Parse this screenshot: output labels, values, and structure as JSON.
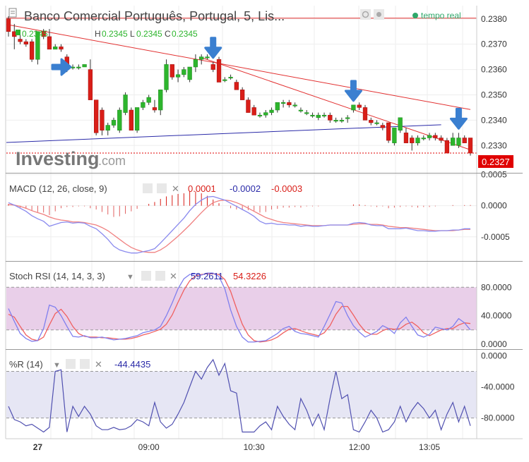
{
  "header": {
    "title": "Banco Comercial Português, Portugal, 5, Lis...",
    "realtime_label": "tempo real",
    "ohlc": [
      {
        "key": "O",
        "value": "0.2345"
      },
      {
        "key": "H",
        "value": "0.2345"
      },
      {
        "key": "L",
        "value": "0.2345"
      },
      {
        "key": "C",
        "value": "0.2345"
      }
    ],
    "logo_text": "Investing",
    "logo_suffix": ".com"
  },
  "colors": {
    "up": "#2db52d",
    "down": "#d91e18",
    "trendline_red": "#e23030",
    "trendline_blue": "#2a2aa8",
    "macd_line": "#8a8aee",
    "signal_line": "#f08080",
    "stoch_k": "#7f7fee",
    "stoch_d": "#f06060",
    "stoch_band": "#e9cfe9",
    "wr_line": "#5050b0",
    "wr_band": "#e6e6f4",
    "arrow": "#3a7fd0",
    "price_badge": "#e00000"
  },
  "chart_data": [
    {
      "id": "price",
      "type": "candlestick",
      "ylim": [
        0.2322,
        0.2383
      ],
      "y_ticks": [
        "0.2380",
        "0.2370",
        "0.2360",
        "0.2350",
        "0.2340",
        "0.2330"
      ],
      "last_price": "0.2327",
      "candles": [
        [
          0.238,
          0.2381,
          0.2373,
          0.2375
        ],
        [
          0.2375,
          0.2378,
          0.2368,
          0.2373
        ],
        [
          0.2372,
          0.2374,
          0.237,
          0.2371
        ],
        [
          0.2371,
          0.2372,
          0.2369,
          0.237
        ],
        [
          0.2371,
          0.2372,
          0.2363,
          0.2364
        ],
        [
          0.2364,
          0.2375,
          0.2362,
          0.2375
        ],
        [
          0.2375,
          0.2376,
          0.2372,
          0.2373
        ],
        [
          0.2373,
          0.2376,
          0.2368,
          0.2368
        ],
        [
          0.2368,
          0.237,
          0.2368,
          0.2369
        ],
        [
          0.2369,
          0.237,
          0.2367,
          0.2368
        ],
        [
          0.2365,
          0.2366,
          0.2359,
          0.236
        ],
        [
          0.2361,
          0.2362,
          0.236,
          0.2361
        ],
        [
          0.2361,
          0.2362,
          0.236,
          0.2361
        ],
        [
          0.2361,
          0.2362,
          0.2361,
          0.2362
        ],
        [
          0.236,
          0.2364,
          0.2348,
          0.2348
        ],
        [
          0.2348,
          0.2348,
          0.2334,
          0.2335
        ],
        [
          0.2344,
          0.2345,
          0.2334,
          0.2336
        ],
        [
          0.2336,
          0.2339,
          0.2334,
          0.2338
        ],
        [
          0.2338,
          0.2341,
          0.2337,
          0.234
        ],
        [
          0.2336,
          0.2345,
          0.2335,
          0.2344
        ],
        [
          0.2343,
          0.2351,
          0.2342,
          0.235
        ],
        [
          0.2344,
          0.2345,
          0.2336,
          0.2336
        ],
        [
          0.2336,
          0.2345,
          0.2335,
          0.2345
        ],
        [
          0.2345,
          0.2348,
          0.2344,
          0.2347
        ],
        [
          0.2347,
          0.235,
          0.2346,
          0.2349
        ],
        [
          0.2345,
          0.2348,
          0.2343,
          0.2344
        ],
        [
          0.2344,
          0.2352,
          0.2342,
          0.2352
        ],
        [
          0.2352,
          0.2364,
          0.2351,
          0.2362
        ],
        [
          0.2362,
          0.2362,
          0.2356,
          0.2357
        ],
        [
          0.2357,
          0.236,
          0.2355,
          0.2358
        ],
        [
          0.2358,
          0.2361,
          0.2357,
          0.236
        ],
        [
          0.2356,
          0.2361,
          0.2355,
          0.2361
        ],
        [
          0.2361,
          0.2366,
          0.2359,
          0.2364
        ],
        [
          0.2364,
          0.2366,
          0.2362,
          0.2365
        ],
        [
          0.2365,
          0.2366,
          0.2364,
          0.2365
        ],
        [
          0.2362,
          0.2363,
          0.2359,
          0.236
        ],
        [
          0.2364,
          0.2365,
          0.2355,
          0.2355
        ],
        [
          0.2356,
          0.2357,
          0.2355,
          0.2356
        ],
        [
          0.2357,
          0.2358,
          0.2356,
          0.2357
        ],
        [
          0.2355,
          0.2356,
          0.2352,
          0.2352
        ],
        [
          0.2352,
          0.2353,
          0.2348,
          0.2348
        ],
        [
          0.2348,
          0.2349,
          0.2343,
          0.2343
        ],
        [
          0.2345,
          0.2346,
          0.2342,
          0.2342
        ],
        [
          0.2342,
          0.2343,
          0.2341,
          0.2342
        ],
        [
          0.2342,
          0.2344,
          0.2341,
          0.2343
        ],
        [
          0.2343,
          0.2345,
          0.2342,
          0.2344
        ],
        [
          0.2344,
          0.2347,
          0.2343,
          0.2347
        ],
        [
          0.2347,
          0.2348,
          0.2345,
          0.2347
        ],
        [
          0.2347,
          0.2348,
          0.2345,
          0.2346
        ],
        [
          0.2346,
          0.2347,
          0.2345,
          0.2346
        ],
        [
          0.2344,
          0.2345,
          0.2343,
          0.2344
        ],
        [
          0.2343,
          0.2344,
          0.2342,
          0.2343
        ],
        [
          0.2342,
          0.2343,
          0.2341,
          0.2342
        ],
        [
          0.2341,
          0.2343,
          0.234,
          0.2342
        ],
        [
          0.2342,
          0.2343,
          0.2341,
          0.2342
        ],
        [
          0.2342,
          0.2343,
          0.2339,
          0.234
        ],
        [
          0.234,
          0.2341,
          0.2339,
          0.234
        ],
        [
          0.234,
          0.2341,
          0.2339,
          0.234
        ],
        [
          0.2341,
          0.2342,
          0.2339,
          0.2341
        ],
        [
          0.2344,
          0.2346,
          0.2343,
          0.2346
        ],
        [
          0.2346,
          0.2347,
          0.2344,
          0.2345
        ],
        [
          0.2345,
          0.2346,
          0.234,
          0.234
        ],
        [
          0.234,
          0.2341,
          0.2338,
          0.2339
        ],
        [
          0.2339,
          0.234,
          0.2338,
          0.2339
        ],
        [
          0.2338,
          0.2339,
          0.2336,
          0.2337
        ],
        [
          0.2339,
          0.2339,
          0.2331,
          0.2332
        ],
        [
          0.2331,
          0.2337,
          0.233,
          0.2337
        ],
        [
          0.2336,
          0.2341,
          0.2335,
          0.2341
        ],
        [
          0.2335,
          0.2337,
          0.2331,
          0.2331
        ],
        [
          0.2333,
          0.2334,
          0.2328,
          0.2331
        ],
        [
          0.2331,
          0.2334,
          0.233,
          0.2333
        ],
        [
          0.2333,
          0.2334,
          0.2332,
          0.2333
        ],
        [
          0.2333,
          0.2335,
          0.2332,
          0.2334
        ],
        [
          0.2334,
          0.2335,
          0.2332,
          0.2333
        ],
        [
          0.2333,
          0.2334,
          0.2331,
          0.2332
        ],
        [
          0.2332,
          0.2333,
          0.2327,
          0.2327
        ],
        [
          0.233,
          0.2335,
          0.233,
          0.2333
        ],
        [
          0.233,
          0.2335,
          0.2329,
          0.2333
        ],
        [
          0.2333,
          0.2334,
          0.2331,
          0.2331
        ],
        [
          0.2333,
          0.2333,
          0.2326,
          0.2327
        ]
      ],
      "trendlines": [
        {
          "color": "red",
          "from": [
            0,
            0.23803
          ],
          "to": [
            80,
            0.23803
          ]
        },
        {
          "color": "red",
          "from": [
            0,
            0.23778
          ],
          "to": [
            79,
            0.23442
          ]
        },
        {
          "color": "red",
          "from": [
            33,
            0.2365
          ],
          "to": [
            79,
            0.23283
          ]
        },
        {
          "color": "blue",
          "from": [
            0,
            0.23312
          ],
          "to": [
            74,
            0.23382
          ]
        }
      ],
      "markers": [
        {
          "index": 11,
          "direction": "right"
        },
        {
          "index": 35,
          "direction": "down"
        },
        {
          "index": 59,
          "direction": "down"
        },
        {
          "index": 77,
          "direction": "down"
        }
      ]
    },
    {
      "id": "macd",
      "type": "line",
      "label": "MACD (12, 26, close, 9)",
      "readouts": [
        "0.0001",
        "-0.0002",
        "-0.0003"
      ],
      "ylim": [
        -0.00082,
        0.00045
      ],
      "y_ticks": [
        "0.0005",
        "0.0000",
        "-0.0005"
      ],
      "macd": [
        5e-05,
        1e-05,
        -4e-05,
        -9e-05,
        -0.00016,
        -0.00021,
        -0.00025,
        -0.00033,
        -0.0003,
        -0.00027,
        -0.00026,
        -0.00028,
        -0.00027,
        -0.00028,
        -0.00033,
        -0.00037,
        -0.00045,
        -0.00054,
        -0.00065,
        -0.00071,
        -0.00074,
        -0.00076,
        -0.00076,
        -0.00074,
        -0.00072,
        -0.00069,
        -0.0006,
        -0.0005,
        -0.0004,
        -0.0003,
        -0.0002,
        -8e-05,
        2e-05,
        9e-05,
        0.00014,
        0.00015,
        0.00012,
        9e-05,
        4e-05,
        -1e-05,
        -6e-05,
        -0.00011,
        -0.00017,
        -0.00025,
        -0.00029,
        -0.00028,
        -0.0003,
        -0.0003,
        -0.00031,
        -0.00031,
        -0.00033,
        -0.00032,
        -0.00033,
        -0.00033,
        -0.00032,
        -0.00031,
        -0.00031,
        -0.00031,
        -0.00031,
        -0.00028,
        -0.00027,
        -0.00028,
        -0.00031,
        -0.00032,
        -0.00032,
        -0.00037,
        -0.00037,
        -0.00037,
        -0.00036,
        -0.00038,
        -0.0004,
        -0.0004,
        -0.00041,
        -0.00041,
        -0.0004,
        -0.0004,
        -0.00039,
        -0.00039,
        -0.00037,
        -0.00037
      ],
      "signal": [
        2e-05,
        1e-05,
        -1e-05,
        -4e-05,
        -8e-05,
        -0.00011,
        -0.00014,
        -0.00018,
        -0.00021,
        -0.00023,
        -0.00024,
        -0.00026,
        -0.00026,
        -0.00027,
        -0.00029,
        -0.00031,
        -0.00035,
        -0.0004,
        -0.00047,
        -0.00054,
        -0.00061,
        -0.00067,
        -0.00071,
        -0.00074,
        -0.00075,
        -0.00075,
        -0.00071,
        -0.00065,
        -0.00057,
        -0.00049,
        -0.0004,
        -0.00031,
        -0.00021,
        -0.00011,
        -2e-05,
        5e-05,
        8e-05,
        9e-05,
        8e-05,
        5e-05,
        1e-05,
        -4e-05,
        -9e-05,
        -0.00014,
        -0.00019,
        -0.00022,
        -0.00025,
        -0.00027,
        -0.00028,
        -0.00029,
        -0.0003,
        -0.00031,
        -0.00032,
        -0.00032,
        -0.00032,
        -0.00031,
        -0.00031,
        -0.00031,
        -0.00031,
        -0.0003,
        -0.00029,
        -0.00029,
        -0.0003,
        -0.0003,
        -0.00031,
        -0.00033,
        -0.00034,
        -0.00035,
        -0.00035,
        -0.00036,
        -0.00037,
        -0.00038,
        -0.00039,
        -0.0004,
        -0.0004,
        -0.0004,
        -0.0004,
        -0.00039,
        -0.00038,
        -0.00038
      ]
    },
    {
      "id": "stoch_rsi",
      "type": "line",
      "label": "Stoch RSI (14, 14, 3, 3)",
      "readouts": [
        "59.2611",
        "54.3226"
      ],
      "ylim": [
        -3,
        112
      ],
      "y_ticks": [
        "80.0000",
        "40.0000",
        "0.0000"
      ],
      "band": [
        20,
        80
      ],
      "k": [
        50,
        32,
        15,
        8,
        4,
        5,
        22,
        55,
        52,
        40,
        25,
        11,
        10,
        12,
        9,
        9,
        10,
        8,
        6,
        7,
        8,
        10,
        12,
        16,
        18,
        20,
        25,
        40,
        58,
        78,
        92,
        98,
        99,
        97,
        100,
        100,
        95,
        78,
        48,
        25,
        10,
        3,
        3,
        4,
        5,
        10,
        15,
        22,
        25,
        18,
        15,
        14,
        12,
        10,
        25,
        42,
        60,
        58,
        40,
        26,
        17,
        10,
        14,
        18,
        26,
        22,
        15,
        30,
        38,
        25,
        13,
        10,
        14,
        24,
        22,
        20,
        25,
        36,
        30,
        20
      ],
      "d": [
        42,
        38,
        25,
        13,
        7,
        5,
        10,
        27,
        43,
        49,
        39,
        25,
        15,
        11,
        10,
        10,
        9,
        9,
        8,
        7,
        7,
        8,
        10,
        13,
        15,
        18,
        21,
        28,
        41,
        59,
        76,
        89,
        96,
        98,
        99,
        99,
        98,
        91,
        74,
        50,
        28,
        13,
        5,
        3,
        4,
        6,
        10,
        16,
        21,
        22,
        19,
        16,
        14,
        12,
        16,
        26,
        42,
        53,
        53,
        41,
        28,
        18,
        14,
        14,
        19,
        22,
        21,
        22,
        28,
        31,
        25,
        16,
        12,
        16,
        20,
        22,
        22,
        27,
        30,
        29
      ]
    },
    {
      "id": "williams_r",
      "type": "line",
      "label": "%R (14)",
      "readouts": [
        "-44.4435"
      ],
      "ylim": [
        -103,
        4
      ],
      "y_ticks": [
        "0.0000",
        "-40.0000",
        "-80.0000"
      ],
      "band": [
        -80,
        -20
      ],
      "values": [
        -65,
        -82,
        -85,
        -90,
        -88,
        -93,
        -98,
        -92,
        -20,
        -18,
        -98,
        -65,
        -78,
        -65,
        -75,
        -90,
        -95,
        -95,
        -92,
        -95,
        -94,
        -90,
        -82,
        -85,
        -90,
        -60,
        -85,
        -93,
        -88,
        -75,
        -60,
        -40,
        -20,
        -30,
        -15,
        -5,
        -25,
        -10,
        -45,
        -48,
        -98,
        -98,
        -98,
        -90,
        -85,
        -95,
        -65,
        -78,
        -88,
        -95,
        -55,
        -70,
        -90,
        -75,
        -95,
        -55,
        -20,
        -55,
        -50,
        -95,
        -98,
        -85,
        -70,
        -80,
        -98,
        -95,
        -85,
        -65,
        -85,
        -70,
        -60,
        -68,
        -80,
        -70,
        -95,
        -75,
        -60,
        -85,
        -65,
        -90
      ]
    }
  ],
  "x_axis": {
    "labels": [
      {
        "text": "27",
        "index": 5
      },
      {
        "text": "09:00",
        "index": 24
      },
      {
        "text": "10:30",
        "index": 42
      },
      {
        "text": "12:00",
        "index": 60
      },
      {
        "text": "13:05",
        "index": 72
      }
    ]
  }
}
